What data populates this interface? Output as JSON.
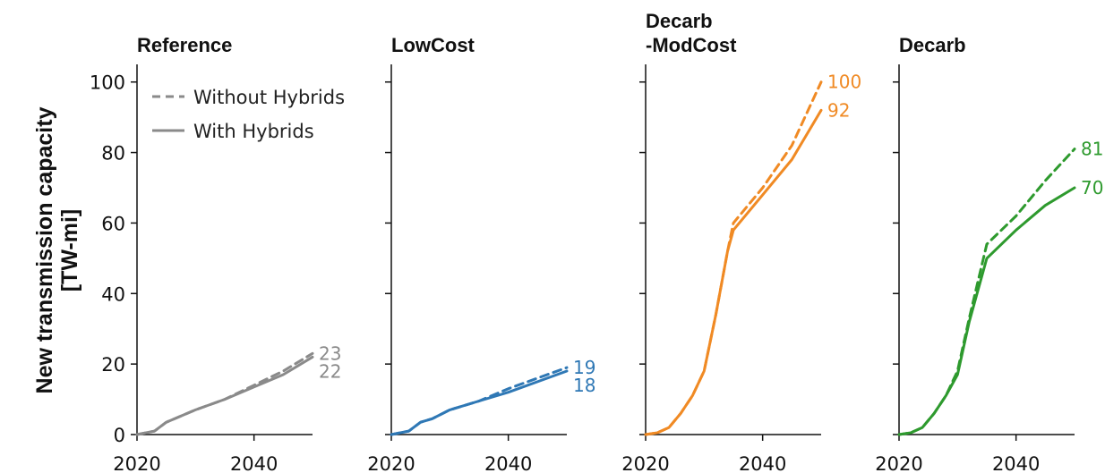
{
  "figure": {
    "ylabel_line1": "New transmission capacity",
    "ylabel_line2": "[TW-mi]",
    "legend": {
      "dashed_label": "Without Hybrids",
      "solid_label": "With Hybrids",
      "color": "#8a8a8a"
    }
  },
  "chart_data": [
    {
      "type": "line",
      "title": [
        "Reference"
      ],
      "color": "#8a8a8a",
      "xlim": [
        2020,
        2050
      ],
      "ylim": [
        0,
        105
      ],
      "x_ticks": [
        2020,
        2040
      ],
      "y_ticks": [
        0,
        20,
        40,
        60,
        80,
        100
      ],
      "end_labels": [
        {
          "text": "23",
          "value": 23
        },
        {
          "text": "22",
          "value": 22
        }
      ],
      "series": [
        {
          "name": "Without Hybrids",
          "style": "dashed",
          "x": [
            2020,
            2023,
            2025,
            2030,
            2035,
            2040,
            2045,
            2050
          ],
          "y": [
            0,
            1,
            3.5,
            7,
            10,
            14,
            18,
            23
          ]
        },
        {
          "name": "With Hybrids",
          "style": "solid",
          "x": [
            2020,
            2023,
            2025,
            2030,
            2035,
            2040,
            2045,
            2050
          ],
          "y": [
            0,
            1,
            3.5,
            7,
            10,
            13.5,
            17,
            22
          ]
        }
      ]
    },
    {
      "type": "line",
      "title": [
        "LowCost"
      ],
      "color": "#2f78b5",
      "xlim": [
        2020,
        2050
      ],
      "ylim": [
        0,
        105
      ],
      "x_ticks": [
        2020,
        2040
      ],
      "y_ticks": [
        0,
        20,
        40,
        60,
        80,
        100
      ],
      "end_labels": [
        {
          "text": "19",
          "value": 19
        },
        {
          "text": "18",
          "value": 18
        }
      ],
      "series": [
        {
          "name": "Without Hybrids",
          "style": "dashed",
          "x": [
            2020,
            2023,
            2025,
            2027,
            2030,
            2035,
            2040,
            2045,
            2050
          ],
          "y": [
            0,
            1,
            3.5,
            4.5,
            7,
            9.5,
            13,
            16,
            19
          ]
        },
        {
          "name": "With Hybrids",
          "style": "solid",
          "x": [
            2020,
            2023,
            2025,
            2027,
            2030,
            2035,
            2040,
            2045,
            2050
          ],
          "y": [
            0,
            1,
            3.5,
            4.5,
            7,
            9.5,
            12,
            15,
            18
          ]
        }
      ]
    },
    {
      "type": "line",
      "title": [
        "Decarb",
        "-ModCost"
      ],
      "color": "#f08a24",
      "xlim": [
        2020,
        2050
      ],
      "ylim": [
        0,
        105
      ],
      "x_ticks": [
        2020,
        2040
      ],
      "y_ticks": [
        0,
        20,
        40,
        60,
        80,
        100
      ],
      "end_labels": [
        {
          "text": "100",
          "value": 100
        },
        {
          "text": "92",
          "value": 92
        }
      ],
      "series": [
        {
          "name": "Without Hybrids",
          "style": "dashed",
          "x": [
            2020,
            2022,
            2024,
            2026,
            2028,
            2030,
            2032,
            2034,
            2035,
            2040,
            2045,
            2050
          ],
          "y": [
            0,
            0.5,
            2,
            6,
            11,
            18,
            34,
            52,
            60,
            70,
            82,
            100
          ]
        },
        {
          "name": "With Hybrids",
          "style": "solid",
          "x": [
            2020,
            2022,
            2024,
            2026,
            2028,
            2030,
            2032,
            2034,
            2035,
            2040,
            2045,
            2050
          ],
          "y": [
            0,
            0.5,
            2,
            6,
            11,
            18,
            34,
            52,
            58,
            68,
            78,
            92
          ]
        }
      ]
    },
    {
      "type": "line",
      "title": [
        "Decarb"
      ],
      "color": "#2e9a2e",
      "xlim": [
        2020,
        2050
      ],
      "ylim": [
        0,
        105
      ],
      "x_ticks": [
        2020,
        2040
      ],
      "y_ticks": [
        0,
        20,
        40,
        60,
        80,
        100
      ],
      "end_labels": [
        {
          "text": "81",
          "value": 81
        },
        {
          "text": "70",
          "value": 70
        }
      ],
      "series": [
        {
          "name": "Without Hybrids",
          "style": "dashed",
          "x": [
            2020,
            2022,
            2024,
            2026,
            2028,
            2030,
            2032,
            2035,
            2040,
            2045,
            2050
          ],
          "y": [
            0,
            0.5,
            2,
            6,
            11,
            18,
            33,
            54,
            62,
            72,
            81
          ]
        },
        {
          "name": "With Hybrids",
          "style": "solid",
          "x": [
            2020,
            2022,
            2024,
            2026,
            2028,
            2030,
            2032,
            2035,
            2040,
            2045,
            2050
          ],
          "y": [
            0,
            0.5,
            2,
            6,
            11,
            17,
            32,
            50,
            58,
            65,
            70
          ]
        }
      ]
    }
  ]
}
